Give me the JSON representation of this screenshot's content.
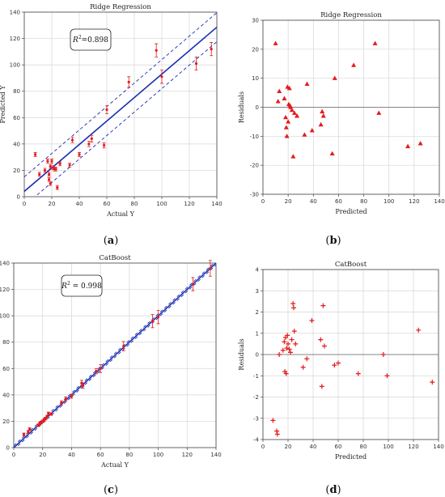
{
  "chart_data": [
    {
      "id": "a",
      "type": "scatter",
      "title": "Ridge Regression",
      "xlabel": "Actual Y",
      "ylabel": "Predicted Y",
      "panel_label": "(a)",
      "annotation": "R²=0.898",
      "xlim": [
        0,
        140
      ],
      "ylim": [
        0,
        140
      ],
      "xticks": [
        0,
        20,
        40,
        60,
        80,
        100,
        120,
        140
      ],
      "yticks": [
        0,
        20,
        40,
        60,
        80,
        100,
        120,
        140
      ],
      "grid": true,
      "fit_line": {
        "slope": 0.89,
        "intercept": 4.0
      },
      "confidence_band": {
        "offset": 11
      },
      "points": [
        {
          "x": 8,
          "y": 32,
          "err": 1.5
        },
        {
          "x": 11,
          "y": 17,
          "err": 1.5
        },
        {
          "x": 15,
          "y": 20,
          "err": 1.5
        },
        {
          "x": 17,
          "y": 27,
          "err": 1.5
        },
        {
          "x": 18,
          "y": 13,
          "err": 1.5
        },
        {
          "x": 18,
          "y": 17,
          "err": 1.5
        },
        {
          "x": 19,
          "y": 10,
          "err": 1.5
        },
        {
          "x": 19,
          "y": 23,
          "err": 1.5
        },
        {
          "x": 20,
          "y": 27,
          "err": 1.5
        },
        {
          "x": 21,
          "y": 22,
          "err": 1.5
        },
        {
          "x": 22,
          "y": 21,
          "err": 1.5
        },
        {
          "x": 23,
          "y": 21,
          "err": 1.5
        },
        {
          "x": 24,
          "y": 7,
          "err": 1.5
        },
        {
          "x": 26,
          "y": 25,
          "err": 1.5
        },
        {
          "x": 33,
          "y": 24,
          "err": 1.5
        },
        {
          "x": 35,
          "y": 43,
          "err": 2
        },
        {
          "x": 40,
          "y": 32,
          "err": 1.5
        },
        {
          "x": 47,
          "y": 40,
          "err": 2
        },
        {
          "x": 49,
          "y": 44,
          "err": 2.5
        },
        {
          "x": 58,
          "y": 39,
          "err": 2
        },
        {
          "x": 60,
          "y": 66,
          "err": 3
        },
        {
          "x": 76,
          "y": 87,
          "err": 4
        },
        {
          "x": 96,
          "y": 111,
          "err": 5
        },
        {
          "x": 100,
          "y": 91,
          "err": 5
        },
        {
          "x": 125,
          "y": 101,
          "err": 5
        },
        {
          "x": 136,
          "y": 112,
          "err": 5
        }
      ]
    },
    {
      "id": "b",
      "type": "scatter",
      "title": "Ridge Regression",
      "xlabel": "Predicted",
      "ylabel": "Residuals",
      "panel_label": "(b)",
      "marker": "triangle",
      "xlim": [
        0,
        140
      ],
      "ylim": [
        -30,
        30
      ],
      "xticks": [
        0,
        20,
        40,
        60,
        80,
        100,
        120,
        140
      ],
      "yticks": [
        -30,
        -20,
        -10,
        0,
        10,
        20,
        30
      ],
      "grid": true,
      "zero_line": true,
      "points": [
        {
          "x": 10,
          "y": 22
        },
        {
          "x": 12,
          "y": 2
        },
        {
          "x": 13,
          "y": 5.5
        },
        {
          "x": 17,
          "y": 3
        },
        {
          "x": 18,
          "y": -3.5
        },
        {
          "x": 18.5,
          "y": -7
        },
        {
          "x": 19,
          "y": -10
        },
        {
          "x": 20,
          "y": -5
        },
        {
          "x": 20.5,
          "y": 1
        },
        {
          "x": 19.5,
          "y": 7
        },
        {
          "x": 21,
          "y": 6.5
        },
        {
          "x": 21.5,
          "y": 0.5
        },
        {
          "x": 22,
          "y": 0
        },
        {
          "x": 23,
          "y": -1
        },
        {
          "x": 24,
          "y": -17
        },
        {
          "x": 25,
          "y": -2
        },
        {
          "x": 27,
          "y": -3
        },
        {
          "x": 33,
          "y": -9.5
        },
        {
          "x": 35,
          "y": 8
        },
        {
          "x": 39,
          "y": -8
        },
        {
          "x": 46,
          "y": -6
        },
        {
          "x": 47,
          "y": -1.5
        },
        {
          "x": 48,
          "y": -3
        },
        {
          "x": 55,
          "y": -16
        },
        {
          "x": 57,
          "y": 10
        },
        {
          "x": 72,
          "y": 14.5
        },
        {
          "x": 89,
          "y": 22
        },
        {
          "x": 92,
          "y": -2
        },
        {
          "x": 115,
          "y": -13.5
        },
        {
          "x": 125,
          "y": -12.5
        }
      ]
    },
    {
      "id": "c",
      "type": "scatter",
      "title": "CatBoost",
      "xlabel": "Actual Y",
      "ylabel": "Predicted Y",
      "panel_label": "(c)",
      "annotation": "R² = 0.998",
      "xlim": [
        0,
        140
      ],
      "ylim": [
        0,
        140
      ],
      "xticks": [
        0,
        20,
        40,
        60,
        80,
        100,
        120,
        140
      ],
      "yticks": [
        0,
        20,
        40,
        60,
        80,
        100,
        120,
        140
      ],
      "grid": true,
      "fit_line": {
        "slope": 1.0,
        "intercept": 0
      },
      "confidence_band": {
        "offset": 1.5
      },
      "points": [
        {
          "x": 7,
          "y": 10,
          "err": 1
        },
        {
          "x": 10,
          "y": 12,
          "err": 1
        },
        {
          "x": 11,
          "y": 14,
          "err": 1
        },
        {
          "x": 17,
          "y": 17,
          "err": 1
        },
        {
          "x": 18,
          "y": 18.5,
          "err": 1
        },
        {
          "x": 19,
          "y": 19,
          "err": 1
        },
        {
          "x": 20,
          "y": 20,
          "err": 1
        },
        {
          "x": 21,
          "y": 21,
          "err": 1
        },
        {
          "x": 22,
          "y": 22,
          "err": 1
        },
        {
          "x": 23,
          "y": 23.5,
          "err": 1
        },
        {
          "x": 24,
          "y": 26,
          "err": 1
        },
        {
          "x": 26,
          "y": 25.5,
          "err": 1
        },
        {
          "x": 33,
          "y": 34,
          "err": 1.5
        },
        {
          "x": 36,
          "y": 37,
          "err": 1.5
        },
        {
          "x": 40,
          "y": 39,
          "err": 1.5
        },
        {
          "x": 47,
          "y": 49,
          "err": 2
        },
        {
          "x": 48,
          "y": 47,
          "err": 2
        },
        {
          "x": 57,
          "y": 58,
          "err": 2
        },
        {
          "x": 60,
          "y": 60,
          "err": 3
        },
        {
          "x": 76,
          "y": 77,
          "err": 3.5
        },
        {
          "x": 96,
          "y": 96,
          "err": 5
        },
        {
          "x": 100,
          "y": 99,
          "err": 5
        },
        {
          "x": 124,
          "y": 124,
          "err": 5
        },
        {
          "x": 136,
          "y": 136,
          "err": 6
        }
      ]
    },
    {
      "id": "d",
      "type": "scatter",
      "title": "CatBoost",
      "xlabel": "Predicted",
      "ylabel": "Residuals",
      "panel_label": "(d)",
      "marker": "plus",
      "xlim": [
        0,
        140
      ],
      "ylim": [
        -4,
        4
      ],
      "xticks": [
        0,
        20,
        40,
        60,
        80,
        100,
        120,
        140
      ],
      "yticks": [
        -4,
        -3,
        -2,
        -1,
        0,
        1,
        2,
        3,
        4
      ],
      "grid": true,
      "zero_line": true,
      "points": [
        {
          "x": 8,
          "y": -3.1
        },
        {
          "x": 11,
          "y": -3.6
        },
        {
          "x": 11.5,
          "y": -3.75
        },
        {
          "x": 13,
          "y": 0
        },
        {
          "x": 16,
          "y": 0.2
        },
        {
          "x": 17,
          "y": 0.6
        },
        {
          "x": 17.5,
          "y": -0.8
        },
        {
          "x": 18,
          "y": 0.8
        },
        {
          "x": 18.5,
          "y": -0.9
        },
        {
          "x": 19,
          "y": 0.3
        },
        {
          "x": 19.5,
          "y": 0.9
        },
        {
          "x": 20,
          "y": 0.5
        },
        {
          "x": 21,
          "y": 0.25
        },
        {
          "x": 22,
          "y": 0.1
        },
        {
          "x": 23,
          "y": 0.7
        },
        {
          "x": 24,
          "y": 2.4
        },
        {
          "x": 24.5,
          "y": 2.2
        },
        {
          "x": 25,
          "y": 1.1
        },
        {
          "x": 26,
          "y": 0.5
        },
        {
          "x": 32,
          "y": -0.6
        },
        {
          "x": 35,
          "y": -0.2
        },
        {
          "x": 39,
          "y": 1.6
        },
        {
          "x": 46,
          "y": 0.7
        },
        {
          "x": 48,
          "y": 2.3
        },
        {
          "x": 47,
          "y": -1.5
        },
        {
          "x": 49,
          "y": 0.4
        },
        {
          "x": 57,
          "y": -0.5
        },
        {
          "x": 60,
          "y": -0.4
        },
        {
          "x": 76,
          "y": -0.9
        },
        {
          "x": 96,
          "y": 0
        },
        {
          "x": 99,
          "y": -1
        },
        {
          "x": 124,
          "y": 1.15
        },
        {
          "x": 135,
          "y": -1.3
        }
      ]
    }
  ]
}
